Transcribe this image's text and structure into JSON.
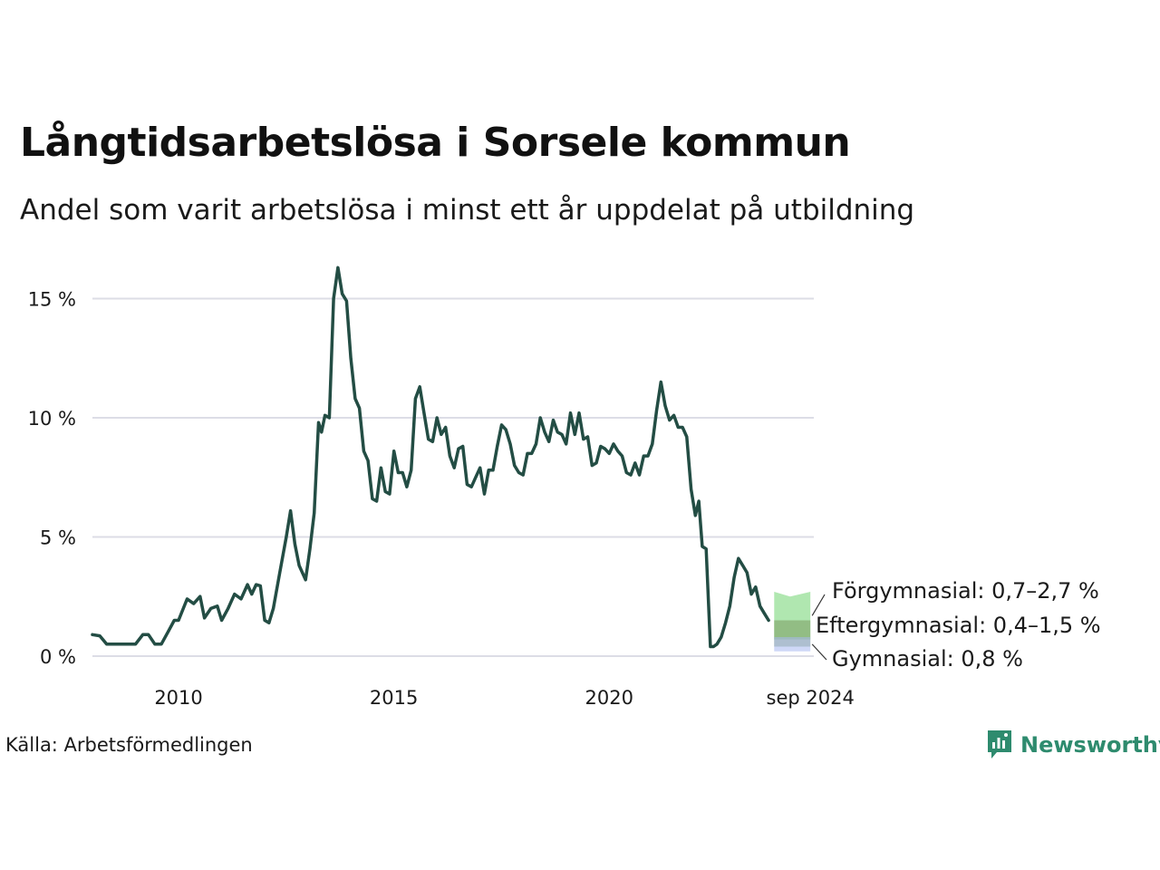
{
  "title": "Långtidsarbetslösa i Sorsele kommun",
  "subtitle": "Andel som varit arbetslösa i minst ett år uppdelat på utbildning",
  "source": "Källa: Arbetsförmedlingen",
  "brand": "Newsworthy",
  "chart_data": {
    "type": "line",
    "title": "Långtidsarbetslösa i Sorsele kommun",
    "subtitle": "Andel som varit arbetslösa i minst ett år uppdelat på utbildning",
    "ylim": [
      0,
      16.5
    ],
    "xlim": [
      2008.0,
      2024.75
    ],
    "yticks": [
      {
        "value": 0,
        "label": "0 %"
      },
      {
        "value": 5,
        "label": "5 %"
      },
      {
        "value": 10,
        "label": "10 %"
      },
      {
        "value": 15,
        "label": "15 %"
      }
    ],
    "xticks": [
      {
        "value": 2010,
        "label": "2010"
      },
      {
        "value": 2015,
        "label": "2015"
      },
      {
        "value": 2020,
        "label": "2020"
      },
      {
        "value": 2024.67,
        "label": "sep 2024"
      }
    ],
    "grid": "horizontal",
    "legend": "end-labels",
    "series": [
      {
        "name": "Förgymnasial",
        "end_label": "Förgymnasial: 0,7–2,7 %",
        "color": "#234d44",
        "band_color": "#6fd36f",
        "band": [
          [
            2023.83,
            0.7,
            2.7
          ],
          [
            2024.2,
            0.7,
            2.5
          ],
          [
            2024.67,
            0.7,
            2.7
          ]
        ],
        "points": [
          [
            2008.0,
            0.9
          ],
          [
            2008.17,
            0.85
          ],
          [
            2008.33,
            0.5
          ],
          [
            2008.5,
            0.5
          ],
          [
            2008.75,
            0.5
          ],
          [
            2009.0,
            0.5
          ],
          [
            2009.17,
            0.9
          ],
          [
            2009.3,
            0.9
          ],
          [
            2009.45,
            0.5
          ],
          [
            2009.6,
            0.5
          ],
          [
            2009.75,
            1.0
          ],
          [
            2009.9,
            1.5
          ],
          [
            2010.0,
            1.5
          ],
          [
            2010.2,
            2.4
          ],
          [
            2010.35,
            2.2
          ],
          [
            2010.5,
            2.5
          ],
          [
            2010.6,
            1.6
          ],
          [
            2010.75,
            2.0
          ],
          [
            2010.9,
            2.1
          ],
          [
            2011.0,
            1.5
          ],
          [
            2011.15,
            2.0
          ],
          [
            2011.3,
            2.6
          ],
          [
            2011.45,
            2.4
          ],
          [
            2011.6,
            3.0
          ],
          [
            2011.7,
            2.6
          ],
          [
            2011.8,
            3.0
          ],
          [
            2011.9,
            2.95
          ],
          [
            2012.0,
            1.5
          ],
          [
            2012.1,
            1.4
          ],
          [
            2012.2,
            2.0
          ],
          [
            2012.35,
            3.5
          ],
          [
            2012.5,
            5.0
          ],
          [
            2012.6,
            6.1
          ],
          [
            2012.7,
            4.7
          ],
          [
            2012.8,
            3.8
          ],
          [
            2012.95,
            3.2
          ],
          [
            2013.05,
            4.5
          ],
          [
            2013.15,
            6.0
          ],
          [
            2013.25,
            9.8
          ],
          [
            2013.32,
            9.4
          ],
          [
            2013.4,
            10.1
          ],
          [
            2013.5,
            10.0
          ],
          [
            2013.6,
            15.0
          ],
          [
            2013.7,
            16.3
          ],
          [
            2013.8,
            15.2
          ],
          [
            2013.9,
            14.9
          ],
          [
            2014.0,
            12.5
          ],
          [
            2014.1,
            10.8
          ],
          [
            2014.2,
            10.4
          ],
          [
            2014.3,
            8.6
          ],
          [
            2014.4,
            8.2
          ],
          [
            2014.5,
            6.6
          ],
          [
            2014.6,
            6.5
          ],
          [
            2014.7,
            7.9
          ],
          [
            2014.8,
            6.9
          ],
          [
            2014.9,
            6.8
          ],
          [
            2015.0,
            8.6
          ],
          [
            2015.1,
            7.7
          ],
          [
            2015.2,
            7.7
          ],
          [
            2015.3,
            7.1
          ],
          [
            2015.4,
            7.8
          ],
          [
            2015.5,
            10.8
          ],
          [
            2015.6,
            11.3
          ],
          [
            2015.7,
            10.2
          ],
          [
            2015.8,
            9.1
          ],
          [
            2015.9,
            9.0
          ],
          [
            2016.0,
            10.0
          ],
          [
            2016.1,
            9.3
          ],
          [
            2016.2,
            9.6
          ],
          [
            2016.3,
            8.4
          ],
          [
            2016.4,
            7.9
          ],
          [
            2016.5,
            8.7
          ],
          [
            2016.6,
            8.8
          ],
          [
            2016.7,
            7.2
          ],
          [
            2016.8,
            7.1
          ],
          [
            2016.9,
            7.5
          ],
          [
            2017.0,
            7.9
          ],
          [
            2017.1,
            6.8
          ],
          [
            2017.2,
            7.8
          ],
          [
            2017.3,
            7.8
          ],
          [
            2017.4,
            8.8
          ],
          [
            2017.5,
            9.7
          ],
          [
            2017.6,
            9.5
          ],
          [
            2017.7,
            8.9
          ],
          [
            2017.8,
            8.0
          ],
          [
            2017.9,
            7.7
          ],
          [
            2018.0,
            7.6
          ],
          [
            2018.1,
            8.5
          ],
          [
            2018.2,
            8.5
          ],
          [
            2018.3,
            8.9
          ],
          [
            2018.4,
            10.0
          ],
          [
            2018.5,
            9.4
          ],
          [
            2018.6,
            9.0
          ],
          [
            2018.7,
            9.9
          ],
          [
            2018.8,
            9.4
          ],
          [
            2018.9,
            9.3
          ],
          [
            2019.0,
            8.9
          ],
          [
            2019.1,
            10.2
          ],
          [
            2019.2,
            9.3
          ],
          [
            2019.3,
            10.2
          ],
          [
            2019.4,
            9.1
          ],
          [
            2019.5,
            9.2
          ],
          [
            2019.6,
            8.0
          ],
          [
            2019.7,
            8.1
          ],
          [
            2019.8,
            8.8
          ],
          [
            2019.9,
            8.7
          ],
          [
            2020.0,
            8.5
          ],
          [
            2020.1,
            8.9
          ],
          [
            2020.2,
            8.6
          ],
          [
            2020.3,
            8.4
          ],
          [
            2020.4,
            7.7
          ],
          [
            2020.5,
            7.6
          ],
          [
            2020.6,
            8.1
          ],
          [
            2020.7,
            7.6
          ],
          [
            2020.8,
            8.4
          ],
          [
            2020.9,
            8.4
          ],
          [
            2021.0,
            8.9
          ],
          [
            2021.1,
            10.3
          ],
          [
            2021.2,
            11.5
          ],
          [
            2021.3,
            10.5
          ],
          [
            2021.4,
            9.9
          ],
          [
            2021.5,
            10.1
          ],
          [
            2021.6,
            9.6
          ],
          [
            2021.7,
            9.6
          ],
          [
            2021.8,
            9.2
          ],
          [
            2021.9,
            7.0
          ],
          [
            2022.0,
            5.9
          ],
          [
            2022.08,
            6.5
          ],
          [
            2022.16,
            4.6
          ],
          [
            2022.25,
            4.5
          ],
          [
            2022.35,
            0.4
          ],
          [
            2022.42,
            0.4
          ],
          [
            2022.5,
            0.5
          ],
          [
            2022.6,
            0.8
          ],
          [
            2022.7,
            1.4
          ],
          [
            2022.8,
            2.1
          ],
          [
            2022.9,
            3.3
          ],
          [
            2023.0,
            4.1
          ],
          [
            2023.1,
            3.8
          ],
          [
            2023.2,
            3.5
          ],
          [
            2023.3,
            2.6
          ],
          [
            2023.4,
            2.9
          ],
          [
            2023.5,
            2.1
          ],
          [
            2023.6,
            1.8
          ],
          [
            2023.7,
            1.5
          ]
        ]
      },
      {
        "name": "Eftergymnasial",
        "end_label": "Eftergymnasial: 0,4–1,5 %",
        "color": "#1a9479",
        "band_color": "#7a9a60",
        "band": [
          [
            2023.83,
            0.4,
            1.5
          ],
          [
            2024.67,
            0.4,
            1.5
          ]
        ],
        "points": []
      },
      {
        "name": "Gymnasial",
        "end_label": "Gymnasial: 0,8 %",
        "color": "#d4a24c",
        "band_color": "#a8b8f0",
        "band": [
          [
            2023.83,
            0.2,
            0.8
          ],
          [
            2024.67,
            0.2,
            0.8
          ]
        ],
        "points": []
      }
    ]
  }
}
